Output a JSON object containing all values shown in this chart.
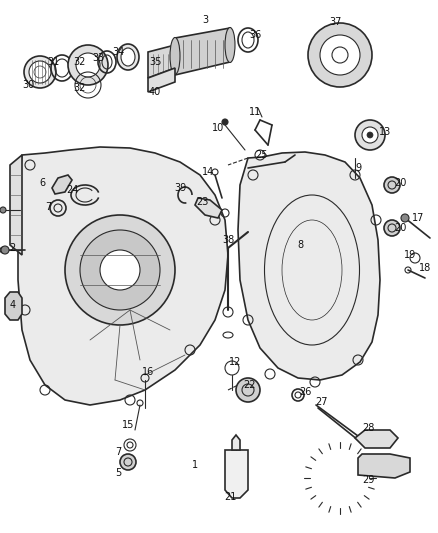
{
  "bg_color": "#ffffff",
  "fig_width": 4.38,
  "fig_height": 5.33,
  "dpi": 100
}
